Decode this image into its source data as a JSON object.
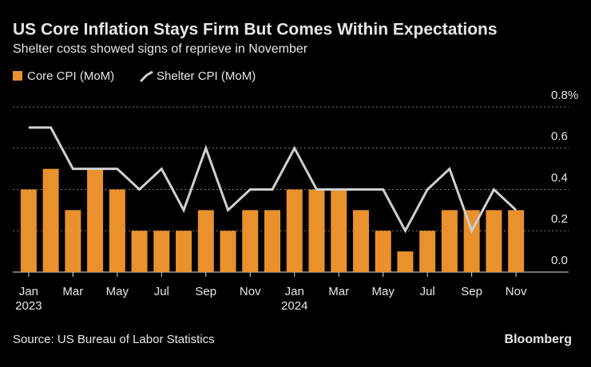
{
  "chart_data": {
    "type": "bar_line",
    "title": "US Core Inflation Stays Firm But Comes Within Expectations",
    "subtitle": "Shelter costs showed signs of reprieve in November",
    "source": "Source: US Bureau of Labor Statistics",
    "brand": "Bloomberg",
    "categories": [
      "Jan",
      null,
      "Mar",
      null,
      "May",
      null,
      "Jul",
      null,
      "Sep",
      null,
      "Nov",
      null,
      "Jan",
      null,
      "Mar",
      null,
      "May",
      null,
      "Jul",
      null,
      "Sep",
      null,
      "Nov"
    ],
    "year_labels": [
      "2023",
      null,
      null,
      null,
      null,
      null,
      null,
      null,
      null,
      null,
      null,
      null,
      "2024",
      null,
      null,
      null,
      null,
      null,
      null,
      null,
      null,
      null,
      null
    ],
    "series": [
      {
        "name": "Core CPI (MoM)",
        "kind": "bar",
        "color": "#e8912d",
        "values": [
          0.4,
          0.5,
          0.3,
          0.5,
          0.4,
          0.2,
          0.2,
          0.2,
          0.3,
          0.2,
          0.3,
          0.3,
          0.4,
          0.4,
          0.4,
          0.3,
          0.2,
          0.1,
          0.2,
          0.3,
          0.3,
          0.3,
          0.3
        ]
      },
      {
        "name": "Shelter CPI (MoM)",
        "kind": "line",
        "color": "#cfcfcf",
        "values": [
          0.7,
          0.7,
          0.5,
          0.5,
          0.5,
          0.4,
          0.5,
          0.3,
          0.6,
          0.3,
          0.4,
          0.4,
          0.6,
          0.4,
          0.4,
          0.4,
          0.4,
          0.2,
          0.4,
          0.5,
          0.2,
          0.4,
          0.3
        ]
      }
    ],
    "ylim": [
      0,
      0.8
    ],
    "yticks": [
      {
        "value": 0,
        "label": "0.0"
      },
      0.2,
      0.4,
      0.6,
      {
        "value": 0.8,
        "label": "0.8%"
      }
    ],
    "grid": true
  }
}
